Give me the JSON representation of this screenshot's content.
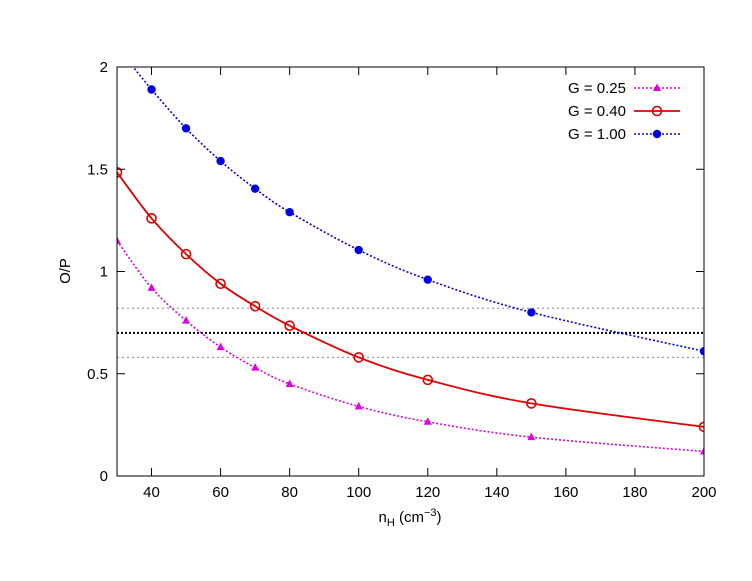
{
  "chart_data": {
    "type": "line",
    "xlabel": {
      "base": "n",
      "sub": "H",
      "unit_open": " (cm",
      "unit_sup": "−3",
      "unit_close": ")"
    },
    "ylabel": "O/P",
    "xlim": [
      30,
      200
    ],
    "ylim": [
      0,
      2
    ],
    "xticks": [
      40,
      60,
      80,
      100,
      120,
      140,
      160,
      180,
      200
    ],
    "yticks": [
      0,
      0.5,
      1,
      1.5,
      2
    ],
    "xtick_labels": [
      "40",
      "60",
      "80",
      "100",
      "120",
      "140",
      "160",
      "180",
      "200"
    ],
    "ytick_labels": [
      "0",
      "0.5",
      "1",
      "1.5",
      "2"
    ],
    "legend_position": "top-right",
    "reference_lines": [
      {
        "y": 0.82,
        "style": "dotted",
        "color": "#8a8a8a"
      },
      {
        "y": 0.7,
        "style": "dotted-bold",
        "color": "#000000"
      },
      {
        "y": 0.58,
        "style": "dotted",
        "color": "#8a8a8a"
      }
    ],
    "series": [
      {
        "name": "G = 0.25",
        "color": "#e000e0",
        "marker": "triangle",
        "line": "dotted",
        "x": [
          30,
          40,
          50,
          60,
          70,
          80,
          100,
          120,
          150,
          200
        ],
        "y": [
          1.15,
          0.92,
          0.76,
          0.63,
          0.53,
          0.45,
          0.34,
          0.265,
          0.19,
          0.12
        ]
      },
      {
        "name": "G = 0.40",
        "color": "#e00000",
        "marker": "open-circle",
        "line": "solid",
        "x": [
          30,
          40,
          50,
          60,
          70,
          80,
          100,
          120,
          150,
          200
        ],
        "y": [
          1.485,
          1.26,
          1.085,
          0.94,
          0.83,
          0.735,
          0.58,
          0.47,
          0.355,
          0.24
        ]
      },
      {
        "name": "G = 1.00",
        "color": "#0000e0",
        "marker": "filled-circle",
        "line": "dotted",
        "x": [
          30,
          40,
          50,
          60,
          70,
          80,
          100,
          120,
          150,
          200
        ],
        "y": [
          2.1,
          1.89,
          1.7,
          1.54,
          1.405,
          1.29,
          1.105,
          0.96,
          0.8,
          0.61
        ]
      }
    ]
  }
}
